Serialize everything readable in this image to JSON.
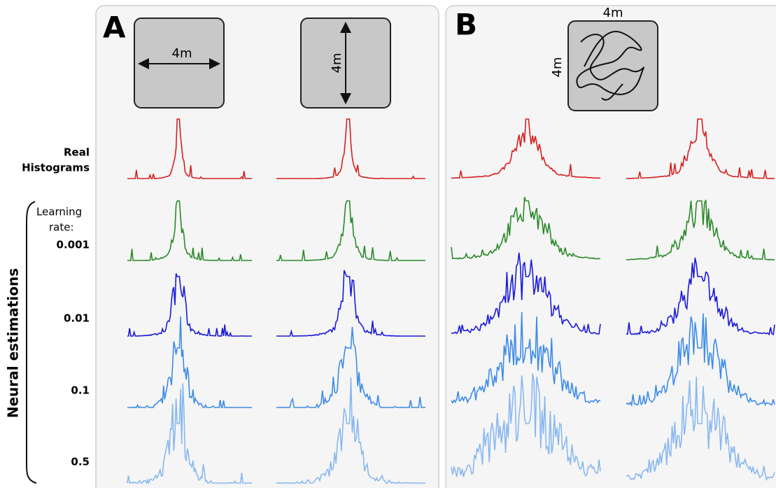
{
  "panels": [
    {
      "label": "A",
      "arenas": [
        {
          "dimension": "4m"
        },
        {
          "dimension": "4m"
        }
      ]
    },
    {
      "label": "B",
      "arena": {
        "width": "4m",
        "height": "4m"
      }
    }
  ],
  "rows": {
    "real": [
      "Real",
      "Histograms"
    ],
    "neural": "Neural estimations",
    "learning_rate": [
      "Learning",
      "rate:"
    ],
    "rates": [
      "0.001",
      "0.01",
      "0.1",
      "0.5"
    ]
  }
}
